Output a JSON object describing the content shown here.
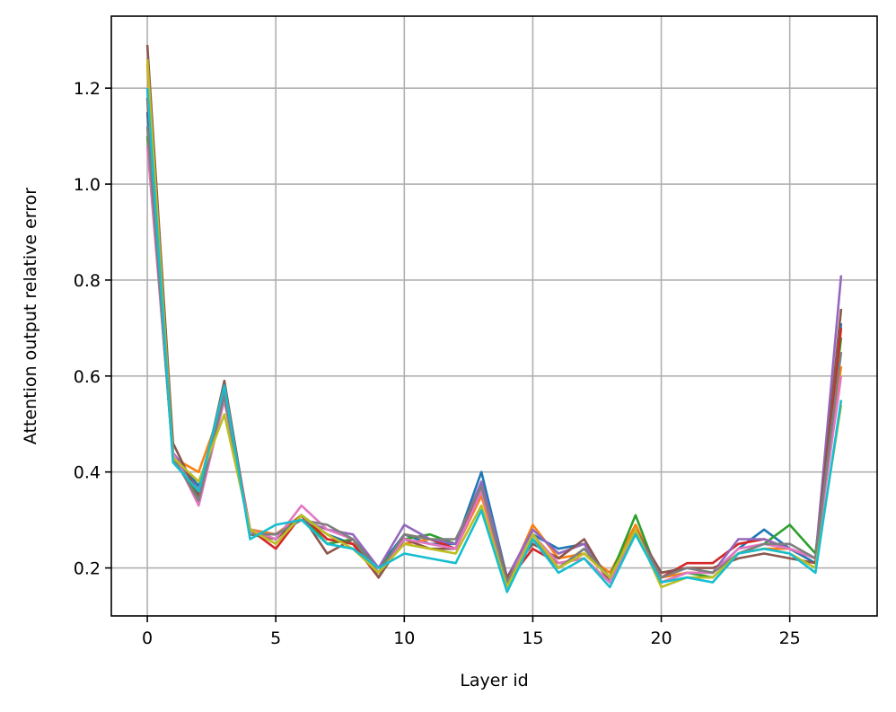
{
  "chart_data": {
    "type": "line",
    "title": "",
    "xlabel": "Layer id",
    "ylabel": "Attention output relative error",
    "xlim": [
      -1.4,
      28.4
    ],
    "ylim": [
      0.1,
      1.35
    ],
    "xticks": [
      0,
      5,
      10,
      15,
      20,
      25
    ],
    "yticks": [
      0.2,
      0.4,
      0.6,
      0.8,
      1.0,
      1.2
    ],
    "xtick_labels": [
      "0",
      "5",
      "10",
      "15",
      "20",
      "25"
    ],
    "ytick_labels": [
      "0.2",
      "0.4",
      "0.6",
      "0.8",
      "1.0",
      "1.2"
    ],
    "grid": true,
    "legend": "none",
    "x": [
      0,
      1,
      2,
      3,
      4,
      5,
      6,
      7,
      8,
      9,
      10,
      11,
      12,
      13,
      14,
      15,
      16,
      17,
      18,
      19,
      20,
      21,
      22,
      23,
      24,
      25,
      26,
      27
    ],
    "series": [
      {
        "color": "#1f77b4",
        "values": [
          1.15,
          0.44,
          0.37,
          0.56,
          0.28,
          0.27,
          0.31,
          0.27,
          0.25,
          0.2,
          0.27,
          0.25,
          0.25,
          0.4,
          0.18,
          0.27,
          0.24,
          0.25,
          0.17,
          0.28,
          0.19,
          0.2,
          0.19,
          0.24,
          0.28,
          0.24,
          0.21,
          0.71
        ]
      },
      {
        "color": "#ff7f0e",
        "values": [
          1.25,
          0.43,
          0.4,
          0.55,
          0.28,
          0.27,
          0.31,
          0.26,
          0.25,
          0.2,
          0.25,
          0.26,
          0.24,
          0.35,
          0.17,
          0.29,
          0.22,
          0.23,
          0.19,
          0.29,
          0.18,
          0.19,
          0.19,
          0.23,
          0.24,
          0.24,
          0.22,
          0.62
        ]
      },
      {
        "color": "#2ca02c",
        "values": [
          1.1,
          0.43,
          0.35,
          0.55,
          0.27,
          0.26,
          0.31,
          0.25,
          0.26,
          0.2,
          0.26,
          0.27,
          0.25,
          0.37,
          0.17,
          0.26,
          0.2,
          0.24,
          0.18,
          0.31,
          0.17,
          0.19,
          0.18,
          0.23,
          0.25,
          0.29,
          0.23,
          0.68
        ]
      },
      {
        "color": "#d62728",
        "values": [
          1.18,
          0.44,
          0.36,
          0.57,
          0.28,
          0.24,
          0.31,
          0.26,
          0.25,
          0.18,
          0.27,
          0.26,
          0.24,
          0.37,
          0.17,
          0.24,
          0.21,
          0.22,
          0.17,
          0.28,
          0.18,
          0.21,
          0.21,
          0.25,
          0.26,
          0.24,
          0.22,
          0.7
        ]
      },
      {
        "color": "#9467bd",
        "values": [
          1.2,
          0.44,
          0.36,
          0.57,
          0.27,
          0.27,
          0.3,
          0.28,
          0.27,
          0.2,
          0.29,
          0.26,
          0.25,
          0.38,
          0.18,
          0.28,
          0.23,
          0.25,
          0.17,
          0.28,
          0.19,
          0.2,
          0.19,
          0.26,
          0.26,
          0.24,
          0.22,
          0.81
        ]
      },
      {
        "color": "#8c564b",
        "values": [
          1.29,
          0.46,
          0.35,
          0.59,
          0.27,
          0.26,
          0.31,
          0.23,
          0.26,
          0.18,
          0.26,
          0.24,
          0.24,
          0.36,
          0.18,
          0.25,
          0.22,
          0.26,
          0.17,
          0.28,
          0.19,
          0.2,
          0.2,
          0.22,
          0.23,
          0.22,
          0.21,
          0.74
        ]
      },
      {
        "color": "#e377c2",
        "values": [
          1.08,
          0.44,
          0.33,
          0.55,
          0.28,
          0.26,
          0.33,
          0.28,
          0.26,
          0.19,
          0.26,
          0.25,
          0.24,
          0.36,
          0.17,
          0.27,
          0.21,
          0.22,
          0.17,
          0.28,
          0.17,
          0.19,
          0.19,
          0.24,
          0.25,
          0.24,
          0.22,
          0.6
        ]
      },
      {
        "color": "#7f7f7f",
        "values": [
          1.12,
          0.43,
          0.34,
          0.56,
          0.27,
          0.27,
          0.3,
          0.29,
          0.26,
          0.19,
          0.27,
          0.26,
          0.26,
          0.37,
          0.17,
          0.26,
          0.2,
          0.24,
          0.18,
          0.28,
          0.18,
          0.2,
          0.19,
          0.23,
          0.25,
          0.25,
          0.22,
          0.65
        ]
      },
      {
        "color": "#bcbd22",
        "values": [
          1.26,
          0.43,
          0.38,
          0.52,
          0.28,
          0.25,
          0.31,
          0.27,
          0.24,
          0.19,
          0.25,
          0.24,
          0.23,
          0.33,
          0.16,
          0.27,
          0.2,
          0.23,
          0.18,
          0.28,
          0.16,
          0.18,
          0.18,
          0.23,
          0.24,
          0.23,
          0.2,
          0.54
        ]
      },
      {
        "color": "#17becf",
        "values": [
          1.2,
          0.42,
          0.36,
          0.58,
          0.26,
          0.29,
          0.3,
          0.25,
          0.24,
          0.2,
          0.23,
          0.22,
          0.21,
          0.32,
          0.15,
          0.26,
          0.19,
          0.22,
          0.16,
          0.27,
          0.17,
          0.18,
          0.17,
          0.23,
          0.24,
          0.23,
          0.19,
          0.55
        ]
      }
    ]
  }
}
